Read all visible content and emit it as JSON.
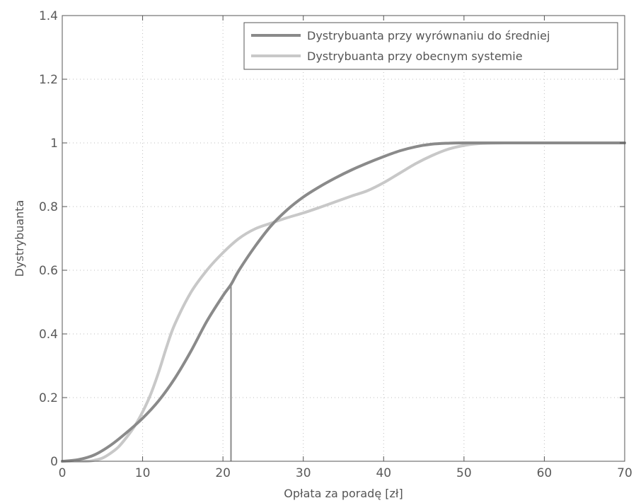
{
  "chart_data": {
    "type": "line",
    "xlabel": "Opłata za poradę [zł]",
    "ylabel": "Dystrybuanta",
    "xlim": [
      0,
      70
    ],
    "ylim": [
      0,
      1.4
    ],
    "x_ticks": [
      0,
      10,
      20,
      30,
      40,
      50,
      60,
      70
    ],
    "y_ticks": [
      0,
      0.2,
      0.4,
      0.6,
      0.8,
      1,
      1.2,
      1.4
    ],
    "x_tick_labels": [
      "0",
      "10",
      "20",
      "30",
      "40",
      "50",
      "60",
      "70"
    ],
    "y_tick_labels": [
      "0",
      "0.2",
      "0.4",
      "0.6",
      "0.8",
      "1",
      "1.2",
      "1.4"
    ],
    "grid": true,
    "legend_position": "top-right",
    "series": [
      {
        "name": "Dystrybuanta przy wyrównaniu do średniej",
        "color": "#8a8a8a",
        "x": [
          0,
          2,
          4,
          6,
          8,
          10,
          12,
          14,
          16,
          18,
          20,
          21,
          22,
          24,
          26,
          28,
          30,
          32,
          34,
          36,
          38,
          40,
          42,
          44,
          46,
          48,
          50,
          55,
          60,
          65,
          70
        ],
        "y": [
          0,
          0.005,
          0.02,
          0.05,
          0.09,
          0.135,
          0.19,
          0.26,
          0.345,
          0.44,
          0.52,
          0.555,
          0.6,
          0.675,
          0.74,
          0.79,
          0.83,
          0.862,
          0.89,
          0.915,
          0.937,
          0.957,
          0.975,
          0.988,
          0.996,
          0.999,
          1.0,
          1.0,
          1.0,
          1.0,
          1.0
        ]
      },
      {
        "name": "Dystrybuanta przy obecnym systemie",
        "color": "#c8c8c8",
        "x": [
          0,
          3,
          4,
          5,
          6,
          7,
          8,
          9,
          10,
          11,
          12,
          13,
          14,
          16,
          18,
          20,
          22,
          24,
          26,
          28,
          30,
          32,
          34,
          36,
          38,
          40,
          42,
          44,
          46,
          48,
          50,
          52,
          55,
          60,
          65,
          70
        ],
        "y": [
          0,
          0,
          0.003,
          0.01,
          0.025,
          0.045,
          0.075,
          0.11,
          0.155,
          0.21,
          0.28,
          0.36,
          0.43,
          0.53,
          0.6,
          0.655,
          0.7,
          0.73,
          0.748,
          0.765,
          0.78,
          0.797,
          0.815,
          0.833,
          0.85,
          0.875,
          0.905,
          0.935,
          0.96,
          0.98,
          0.992,
          0.998,
          1.0,
          1.0,
          1.0,
          1.0
        ]
      }
    ],
    "annotations": [
      {
        "type": "vline",
        "x": 21,
        "y_from": 0,
        "y_to": 0.555,
        "color": "#8a8a8a"
      }
    ]
  }
}
